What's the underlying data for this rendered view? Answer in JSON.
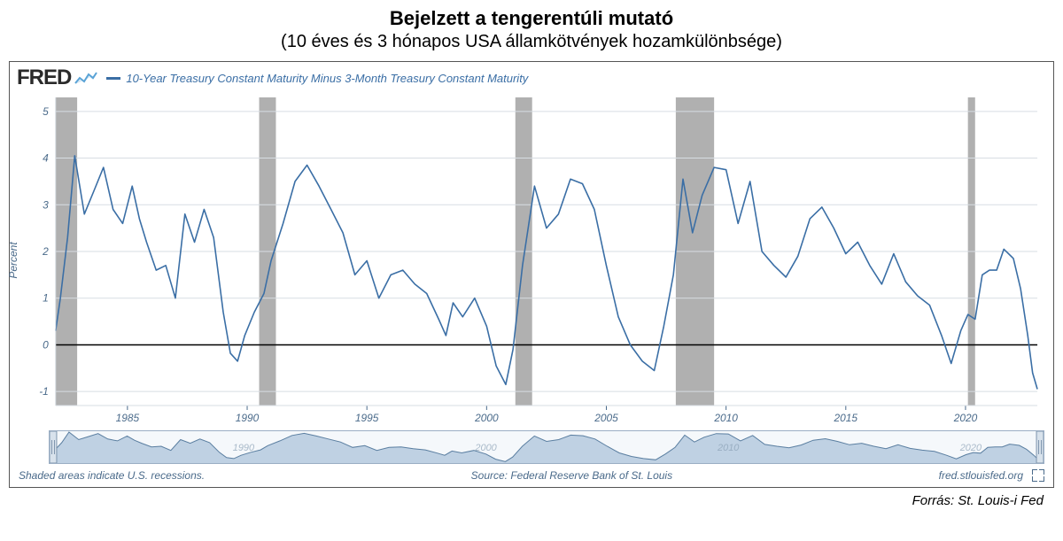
{
  "title": "Bejelzett a tengerentúli mutató",
  "subtitle": "(10 éves és 3 hónapos USA államkötvények hozamkülönbsége)",
  "attribution": "Forrás: St. Louis-i Fed",
  "logo_text": "FRED",
  "legend_label": "10-Year Treasury Constant Maturity Minus 3-Month Treasury Constant Maturity",
  "footer_left": "Shaded areas indicate U.S. recessions.",
  "footer_center": "Source: Federal Reserve Bank of St. Louis",
  "footer_right": "fred.stlouisfed.org",
  "chart": {
    "type": "line",
    "ylabel": "Percent",
    "ylim": [
      -1.3,
      5.3
    ],
    "yticks": [
      -1,
      0,
      1,
      2,
      3,
      4,
      5
    ],
    "xlim": [
      1982,
      2023
    ],
    "xticks": [
      1985,
      1990,
      1995,
      2000,
      2005,
      2010,
      2015,
      2020
    ],
    "zero_line_color": "#000000",
    "grid_color": "#d7dde3",
    "tick_label_color": "#4a6a8a",
    "tick_fontsize": 12,
    "line_color": "#3a6ea5",
    "line_width": 1.6,
    "background_color": "#ffffff",
    "recession_color": "#b0b0b0",
    "recessions": [
      [
        1981.5,
        1982.9
      ],
      [
        1990.5,
        1991.2
      ],
      [
        2001.2,
        2001.9
      ],
      [
        2007.9,
        2009.5
      ],
      [
        2020.1,
        2020.4
      ]
    ],
    "data": [
      [
        1982.0,
        0.3
      ],
      [
        1982.2,
        1.0
      ],
      [
        1982.5,
        2.3
      ],
      [
        1982.8,
        4.05
      ],
      [
        1983.2,
        2.8
      ],
      [
        1983.6,
        3.3
      ],
      [
        1984.0,
        3.8
      ],
      [
        1984.4,
        2.9
      ],
      [
        1984.8,
        2.6
      ],
      [
        1985.2,
        3.4
      ],
      [
        1985.5,
        2.7
      ],
      [
        1985.8,
        2.2
      ],
      [
        1986.2,
        1.6
      ],
      [
        1986.6,
        1.7
      ],
      [
        1987.0,
        1.0
      ],
      [
        1987.4,
        2.8
      ],
      [
        1987.8,
        2.2
      ],
      [
        1988.2,
        2.9
      ],
      [
        1988.6,
        2.3
      ],
      [
        1989.0,
        0.7
      ],
      [
        1989.3,
        -0.18
      ],
      [
        1989.6,
        -0.35
      ],
      [
        1989.9,
        0.2
      ],
      [
        1990.3,
        0.7
      ],
      [
        1990.7,
        1.1
      ],
      [
        1991.0,
        1.8
      ],
      [
        1991.5,
        2.6
      ],
      [
        1992.0,
        3.5
      ],
      [
        1992.5,
        3.85
      ],
      [
        1993.0,
        3.4
      ],
      [
        1993.5,
        2.9
      ],
      [
        1994.0,
        2.4
      ],
      [
        1994.5,
        1.5
      ],
      [
        1995.0,
        1.8
      ],
      [
        1995.5,
        1.0
      ],
      [
        1996.0,
        1.5
      ],
      [
        1996.5,
        1.6
      ],
      [
        1997.0,
        1.3
      ],
      [
        1997.5,
        1.1
      ],
      [
        1998.0,
        0.55
      ],
      [
        1998.3,
        0.2
      ],
      [
        1998.6,
        0.9
      ],
      [
        1999.0,
        0.6
      ],
      [
        1999.5,
        1.0
      ],
      [
        2000.0,
        0.4
      ],
      [
        2000.4,
        -0.45
      ],
      [
        2000.8,
        -0.85
      ],
      [
        2001.1,
        -0.1
      ],
      [
        2001.5,
        1.7
      ],
      [
        2002.0,
        3.4
      ],
      [
        2002.5,
        2.5
      ],
      [
        2003.0,
        2.8
      ],
      [
        2003.5,
        3.55
      ],
      [
        2004.0,
        3.45
      ],
      [
        2004.5,
        2.9
      ],
      [
        2005.0,
        1.7
      ],
      [
        2005.5,
        0.6
      ],
      [
        2006.0,
        0.0
      ],
      [
        2006.5,
        -0.35
      ],
      [
        2007.0,
        -0.55
      ],
      [
        2007.4,
        0.4
      ],
      [
        2007.8,
        1.5
      ],
      [
        2008.2,
        3.55
      ],
      [
        2008.6,
        2.4
      ],
      [
        2009.0,
        3.2
      ],
      [
        2009.5,
        3.8
      ],
      [
        2010.0,
        3.75
      ],
      [
        2010.5,
        2.6
      ],
      [
        2011.0,
        3.5
      ],
      [
        2011.5,
        2.0
      ],
      [
        2012.0,
        1.7
      ],
      [
        2012.5,
        1.45
      ],
      [
        2013.0,
        1.9
      ],
      [
        2013.5,
        2.7
      ],
      [
        2014.0,
        2.95
      ],
      [
        2014.5,
        2.5
      ],
      [
        2015.0,
        1.95
      ],
      [
        2015.5,
        2.2
      ],
      [
        2016.0,
        1.7
      ],
      [
        2016.5,
        1.3
      ],
      [
        2017.0,
        1.95
      ],
      [
        2017.5,
        1.35
      ],
      [
        2018.0,
        1.05
      ],
      [
        2018.5,
        0.85
      ],
      [
        2019.0,
        0.2
      ],
      [
        2019.4,
        -0.4
      ],
      [
        2019.8,
        0.3
      ],
      [
        2020.1,
        0.65
      ],
      [
        2020.4,
        0.55
      ],
      [
        2020.7,
        1.5
      ],
      [
        2021.0,
        1.6
      ],
      [
        2021.3,
        1.6
      ],
      [
        2021.6,
        2.05
      ],
      [
        2022.0,
        1.85
      ],
      [
        2022.3,
        1.2
      ],
      [
        2022.6,
        0.2
      ],
      [
        2022.8,
        -0.6
      ],
      [
        2023.0,
        -0.95
      ]
    ],
    "nav_label_1990": "1990",
    "nav_label_2000": "2000",
    "nav_label_2010": "2010",
    "nav_label_2020": "2020",
    "nav_fill_color": "#a8c0d8",
    "nav_line_color": "#5a7ea0"
  }
}
